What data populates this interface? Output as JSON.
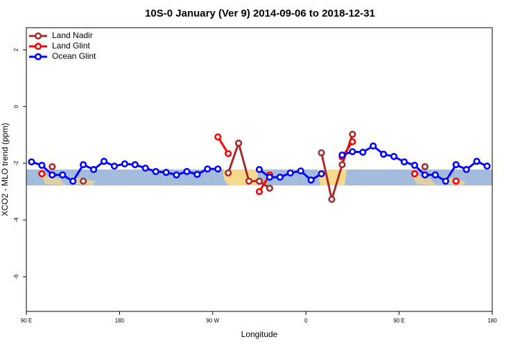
{
  "chart_data": {
    "type": "line",
    "title": "10S-0 January (Ver 9)   2014-09-06 to 2018-12-31",
    "xlabel": "Longitude",
    "ylabel": "XCO2 - MLO trend (ppm)",
    "x": [
      95,
      105,
      115,
      125,
      135,
      145,
      155,
      165,
      175,
      185,
      195,
      205,
      215,
      225,
      235,
      245,
      255,
      265,
      275,
      285,
      295,
      305,
      315,
      325,
      335,
      345,
      355,
      365,
      375,
      385,
      395,
      405,
      415,
      425,
      435,
      445,
      455,
      465,
      475,
      485,
      495,
      505,
      515,
      525,
      535
    ],
    "xlim": [
      90,
      540
    ],
    "xticks": [
      {
        "value": 90,
        "label": "90 E"
      },
      180,
      {
        "value": 270,
        "label": "90 W"
      },
      {
        "value": 360,
        "label": "0"
      },
      {
        "value": 450,
        "label": "90 E"
      },
      {
        "value": 540,
        "label": "180"
      }
    ],
    "ylim": [
      -7.22,
      2.78
    ],
    "yticks": [
      2,
      0,
      -2,
      -4,
      -6
    ],
    "legend": "top-left",
    "series": [
      {
        "name": "Land Nadir",
        "color": "#a52a2a",
        "values": [
          null,
          null,
          -2.12,
          null,
          null,
          -2.63,
          null,
          null,
          null,
          null,
          null,
          null,
          null,
          null,
          null,
          null,
          null,
          null,
          null,
          -2.34,
          -1.29,
          -2.63,
          -2.63,
          -2.88,
          null,
          null,
          null,
          null,
          -1.63,
          -3.27,
          -2.05,
          -0.98,
          null,
          null,
          null,
          null,
          null,
          null,
          -2.12,
          null,
          null,
          -2.63,
          null,
          null,
          null
        ]
      },
      {
        "name": "Land Glint",
        "color": "#ff0000",
        "values": [
          null,
          -2.37,
          null,
          null,
          null,
          null,
          null,
          null,
          null,
          null,
          null,
          null,
          null,
          null,
          null,
          null,
          null,
          null,
          -1.07,
          -1.66,
          null,
          null,
          -3.0,
          -2.41,
          null,
          null,
          null,
          null,
          null,
          null,
          -1.78,
          -1.24,
          null,
          null,
          null,
          null,
          null,
          -2.37,
          null,
          null,
          null,
          -2.63,
          null,
          null,
          null
        ]
      },
      {
        "name": "Ocean Glint",
        "color": "#0000ff",
        "values": [
          -1.95,
          -2.07,
          -2.41,
          -2.41,
          -2.63,
          -2.05,
          -2.22,
          -1.93,
          -2.1,
          -2.02,
          -2.05,
          -2.17,
          -2.29,
          -2.32,
          -2.41,
          -2.29,
          -2.39,
          -2.2,
          -2.2,
          null,
          null,
          null,
          -2.22,
          -2.49,
          -2.49,
          -2.34,
          -2.27,
          -2.59,
          -2.37,
          null,
          -1.71,
          -1.59,
          -1.61,
          -1.39,
          -1.68,
          -1.76,
          -1.95,
          -2.07,
          -2.41,
          -2.41,
          -2.63,
          -2.05,
          -2.22,
          -1.93,
          -2.1
        ]
      }
    ]
  }
}
